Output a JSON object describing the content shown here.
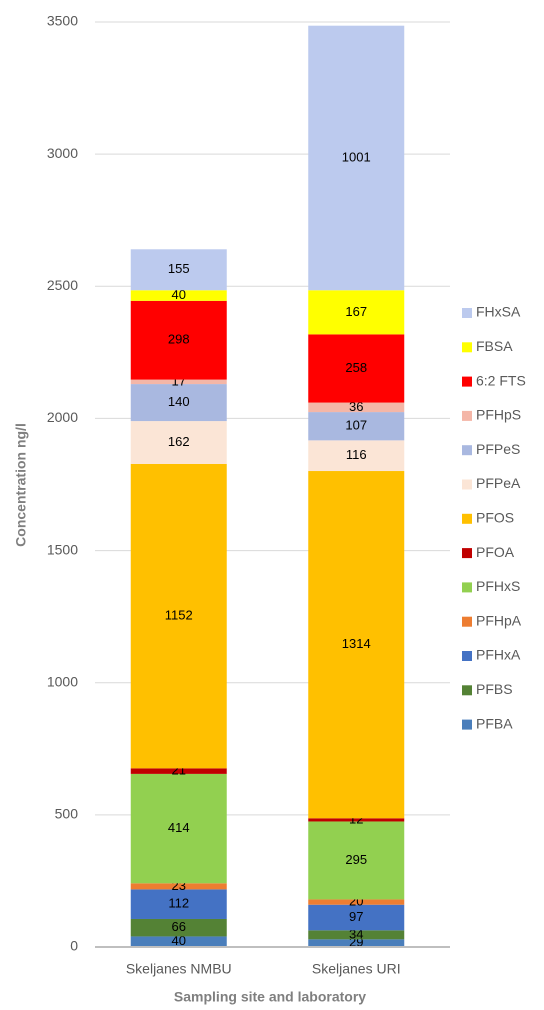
{
  "chart_data": {
    "type": "bar",
    "stacked": true,
    "y_label": "Concentration ng/l",
    "x_label": "Sampling site and laboratory",
    "categories": [
      "Skeljanes NMBU",
      "Skeljanes URI"
    ],
    "ylim": [
      0,
      3500
    ],
    "yticks": [
      0,
      500,
      1000,
      1500,
      2000,
      2500,
      3000,
      3500
    ],
    "grid": true,
    "legend": "right",
    "series": [
      {
        "name": "PFBA",
        "color": "#4a7ebb",
        "values": [
          40,
          29
        ]
      },
      {
        "name": "PFBS",
        "color": "#548235",
        "values": [
          66,
          34
        ]
      },
      {
        "name": "PFHxA",
        "color": "#4472c4",
        "values": [
          112,
          97
        ]
      },
      {
        "name": "PFHpA",
        "color": "#ed7d31",
        "values": [
          23,
          20
        ]
      },
      {
        "name": "PFHxS",
        "color": "#92d050",
        "values": [
          414,
          295
        ]
      },
      {
        "name": "PFOA",
        "color": "#c00000",
        "values": [
          21,
          12
        ]
      },
      {
        "name": "PFOS",
        "color": "#ffc000",
        "values": [
          1152,
          1314
        ]
      },
      {
        "name": "PFPeA",
        "color": "#fbe5d6",
        "values": [
          162,
          116
        ]
      },
      {
        "name": "PFPeS",
        "color": "#a9b8e0",
        "values": [
          140,
          107
        ]
      },
      {
        "name": "PFHpS",
        "color": "#f4b6a7",
        "values": [
          17,
          36
        ]
      },
      {
        "name": "6:2 FTS",
        "color": "#ff0000",
        "values": [
          298,
          258
        ]
      },
      {
        "name": "FBSA",
        "color": "#ffff00",
        "values": [
          40,
          167
        ]
      },
      {
        "name": "FHxSA",
        "color": "#bccaee",
        "values": [
          155,
          1001
        ]
      }
    ]
  }
}
